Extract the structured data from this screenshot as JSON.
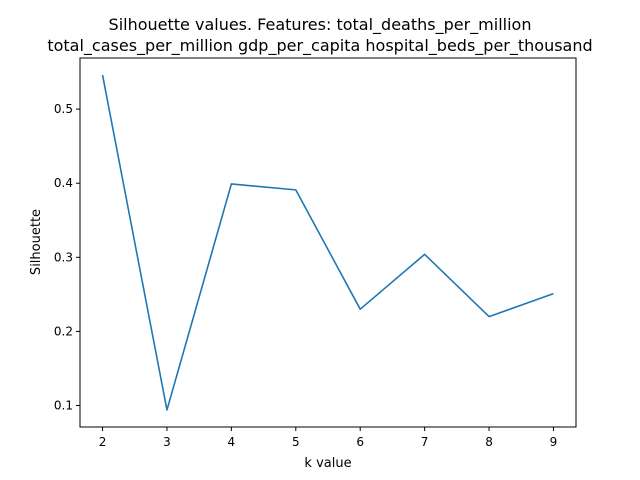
{
  "chart_data": {
    "type": "line",
    "title_lines": [
      "Silhouette values. Features:  total_deaths_per_million",
      "total_cases_per_million gdp_per_capita hospital_beds_per_thousand"
    ],
    "xlabel": "k value",
    "ylabel": "Silhouette",
    "x": [
      2,
      3,
      4,
      5,
      6,
      7,
      8,
      9
    ],
    "series": [
      {
        "values": [
          0.546,
          0.094,
          0.399,
          0.391,
          0.23,
          0.304,
          0.22,
          0.251
        ],
        "color": "#1f77b4"
      }
    ],
    "xlim": [
      1.65,
      9.35
    ],
    "ylim": [
      0.071,
      0.569
    ],
    "xticks": [
      2,
      3,
      4,
      5,
      6,
      7,
      8,
      9
    ],
    "yticks": [
      0.1,
      0.2,
      0.3,
      0.4,
      0.5
    ],
    "ytick_labels": [
      "0.1",
      "0.2",
      "0.3",
      "0.4",
      "0.5"
    ],
    "grid": false,
    "legend": false
  }
}
